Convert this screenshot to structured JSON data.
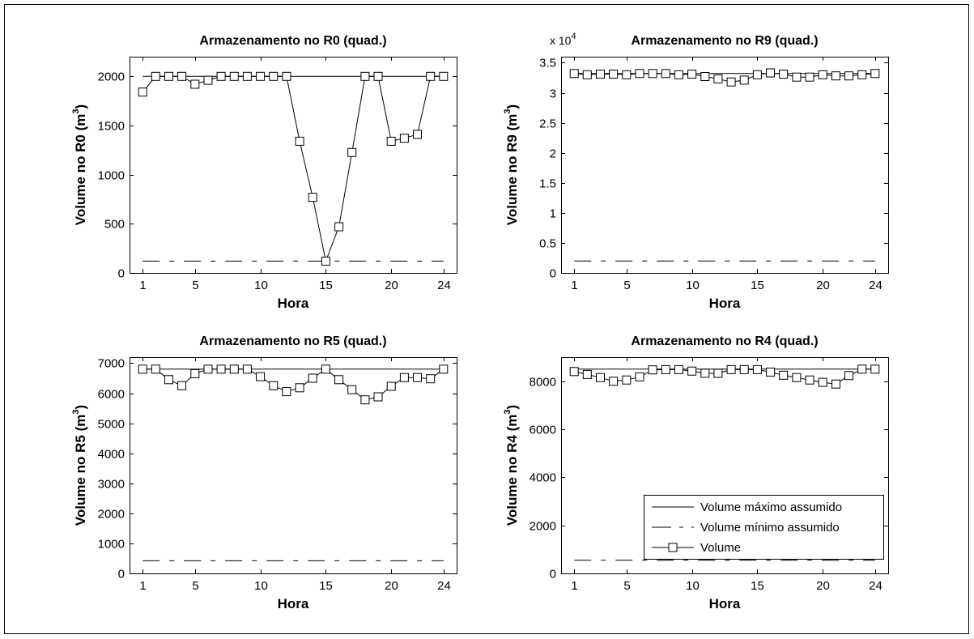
{
  "chart_data": [
    {
      "type": "line",
      "title": "Armazenamento no R0 (quad.)",
      "xlabel": "Hora",
      "ylabel": "Volume no R0 (m",
      "ylabel_sup": "3",
      "ylabel_end": ")",
      "xlim": [
        0,
        25
      ],
      "ylim": [
        0,
        2200
      ],
      "xticks": [
        1,
        5,
        10,
        15,
        20,
        24
      ],
      "yticks": [
        0,
        500,
        1000,
        1500,
        2000
      ],
      "ytick_labels": [
        "0",
        "500",
        "1000",
        "1500",
        "2000"
      ],
      "exponent_label": "",
      "grid": false,
      "x": [
        1,
        2,
        3,
        4,
        5,
        6,
        7,
        8,
        9,
        10,
        11,
        12,
        13,
        14,
        15,
        16,
        17,
        18,
        19,
        20,
        21,
        22,
        23,
        24
      ],
      "series": [
        {
          "name": "Volume máximo assumido",
          "style": "solid",
          "values": [
            2000,
            2000,
            2000,
            2000,
            2000,
            2000,
            2000,
            2000,
            2000,
            2000,
            2000,
            2000,
            2000,
            2000,
            2000,
            2000,
            2000,
            2000,
            2000,
            2000,
            2000,
            2000,
            2000,
            2000
          ]
        },
        {
          "name": "Volume mínimo assumido",
          "style": "dashdot",
          "values": [
            120,
            120,
            120,
            120,
            120,
            120,
            120,
            120,
            120,
            120,
            120,
            120,
            120,
            120,
            120,
            120,
            120,
            120,
            120,
            120,
            120,
            120,
            120,
            120
          ]
        },
        {
          "name": "Volume",
          "style": "marker",
          "values": [
            1840,
            2000,
            2000,
            2000,
            1920,
            1960,
            2000,
            2000,
            2000,
            2000,
            2000,
            2000,
            1340,
            770,
            120,
            470,
            1225,
            2000,
            2000,
            1340,
            1370,
            1410,
            2000,
            2000
          ]
        }
      ]
    },
    {
      "type": "line",
      "title": "Armazenamento no R9 (quad.)",
      "xlabel": "Hora",
      "ylabel": "Volume no R9 (m",
      "ylabel_sup": "3",
      "ylabel_end": ")",
      "xlim": [
        0,
        25
      ],
      "ylim": [
        0,
        36000
      ],
      "xticks": [
        1,
        5,
        10,
        15,
        20,
        24
      ],
      "yticks": [
        0,
        5000,
        10000,
        15000,
        20000,
        25000,
        30000,
        35000
      ],
      "ytick_labels": [
        "0",
        "0.5",
        "1",
        "1.5",
        "2",
        "2.5",
        "3",
        "3.5"
      ],
      "exponent_label": "x 10",
      "exponent_sup": "4",
      "grid": false,
      "x": [
        1,
        2,
        3,
        4,
        5,
        6,
        7,
        8,
        9,
        10,
        11,
        12,
        13,
        14,
        15,
        16,
        17,
        18,
        19,
        20,
        21,
        22,
        23,
        24
      ],
      "series": [
        {
          "name": "Volume máximo assumido",
          "style": "solid",
          "values": [
            33200,
            33200,
            33200,
            33200,
            33200,
            33200,
            33200,
            33200,
            33200,
            33200,
            33200,
            33200,
            33200,
            33200,
            33200,
            33200,
            33200,
            33200,
            33200,
            33200,
            33200,
            33200,
            33200,
            33200
          ]
        },
        {
          "name": "Volume mínimo assumido",
          "style": "dashdot",
          "values": [
            2000,
            2000,
            2000,
            2000,
            2000,
            2000,
            2000,
            2000,
            2000,
            2000,
            2000,
            2000,
            2000,
            2000,
            2000,
            2000,
            2000,
            2000,
            2000,
            2000,
            2000,
            2000,
            2000,
            2000
          ]
        },
        {
          "name": "Volume",
          "style": "marker",
          "values": [
            33200,
            33000,
            33100,
            33100,
            33000,
            33200,
            33200,
            33200,
            33000,
            33100,
            32700,
            32300,
            31800,
            32100,
            33000,
            33300,
            33100,
            32600,
            32600,
            33000,
            32800,
            32800,
            33000,
            33200
          ]
        }
      ]
    },
    {
      "type": "line",
      "title": "Armazenamento no R5 (quad.)",
      "xlabel": "Hora",
      "ylabel": "Volume no R5 (m",
      "ylabel_sup": "3",
      "ylabel_end": ")",
      "xlim": [
        0,
        25
      ],
      "ylim": [
        0,
        7200
      ],
      "xticks": [
        1,
        5,
        10,
        15,
        20,
        24
      ],
      "yticks": [
        0,
        1000,
        2000,
        3000,
        4000,
        5000,
        6000,
        7000
      ],
      "ytick_labels": [
        "0",
        "1000",
        "2000",
        "3000",
        "4000",
        "5000",
        "6000",
        "7000"
      ],
      "exponent_label": "",
      "grid": false,
      "x": [
        1,
        2,
        3,
        4,
        5,
        6,
        7,
        8,
        9,
        10,
        11,
        12,
        13,
        14,
        15,
        16,
        17,
        18,
        19,
        20,
        21,
        22,
        23,
        24
      ],
      "series": [
        {
          "name": "Volume máximo assumido",
          "style": "solid",
          "values": [
            6800,
            6800,
            6800,
            6800,
            6800,
            6800,
            6800,
            6800,
            6800,
            6800,
            6800,
            6800,
            6800,
            6800,
            6800,
            6800,
            6800,
            6800,
            6800,
            6800,
            6800,
            6800,
            6800,
            6800
          ]
        },
        {
          "name": "Volume mínimo assumido",
          "style": "dashdot",
          "values": [
            420,
            420,
            420,
            420,
            420,
            420,
            420,
            420,
            420,
            420,
            420,
            420,
            420,
            420,
            420,
            420,
            420,
            420,
            420,
            420,
            420,
            420,
            420,
            420
          ]
        },
        {
          "name": "Volume",
          "style": "marker",
          "values": [
            6800,
            6800,
            6450,
            6250,
            6650,
            6800,
            6800,
            6800,
            6800,
            6550,
            6250,
            6050,
            6180,
            6500,
            6800,
            6450,
            6120,
            5780,
            5880,
            6230,
            6520,
            6520,
            6480,
            6800
          ]
        }
      ]
    },
    {
      "type": "line",
      "title": "Armazenamento no R4 (quad.)",
      "xlabel": "Hora",
      "ylabel": "Volume no R4 (m",
      "ylabel_sup": "3",
      "ylabel_end": ")",
      "xlim": [
        0,
        25
      ],
      "ylim": [
        0,
        9000
      ],
      "xticks": [
        1,
        5,
        10,
        15,
        20,
        24
      ],
      "yticks": [
        0,
        2000,
        4000,
        6000,
        8000
      ],
      "ytick_labels": [
        "0",
        "2000",
        "4000",
        "6000",
        "8000"
      ],
      "exponent_label": "",
      "grid": false,
      "legend": {
        "location": "lower-right",
        "entries": [
          "Volume máximo assumido",
          "Volume mínimo assumido",
          "Volume"
        ]
      },
      "x": [
        1,
        2,
        3,
        4,
        5,
        6,
        7,
        8,
        9,
        10,
        11,
        12,
        13,
        14,
        15,
        16,
        17,
        18,
        19,
        20,
        21,
        22,
        23,
        24
      ],
      "series": [
        {
          "name": "Volume máximo assumido",
          "style": "solid",
          "values": [
            8500,
            8500,
            8500,
            8500,
            8500,
            8500,
            8500,
            8500,
            8500,
            8500,
            8500,
            8500,
            8500,
            8500,
            8500,
            8500,
            8500,
            8500,
            8500,
            8500,
            8500,
            8500,
            8500,
            8500
          ]
        },
        {
          "name": "Volume mínimo assumido",
          "style": "dashdot",
          "values": [
            550,
            550,
            550,
            550,
            550,
            550,
            550,
            550,
            550,
            550,
            550,
            550,
            550,
            550,
            550,
            550,
            550,
            550,
            550,
            550,
            550,
            550,
            550,
            550
          ]
        },
        {
          "name": "Volume",
          "style": "marker",
          "values": [
            8400,
            8280,
            8150,
            8000,
            8050,
            8180,
            8470,
            8480,
            8480,
            8420,
            8330,
            8330,
            8480,
            8480,
            8480,
            8380,
            8250,
            8150,
            8050,
            7950,
            7880,
            8230,
            8500,
            8500
          ]
        }
      ]
    }
  ]
}
